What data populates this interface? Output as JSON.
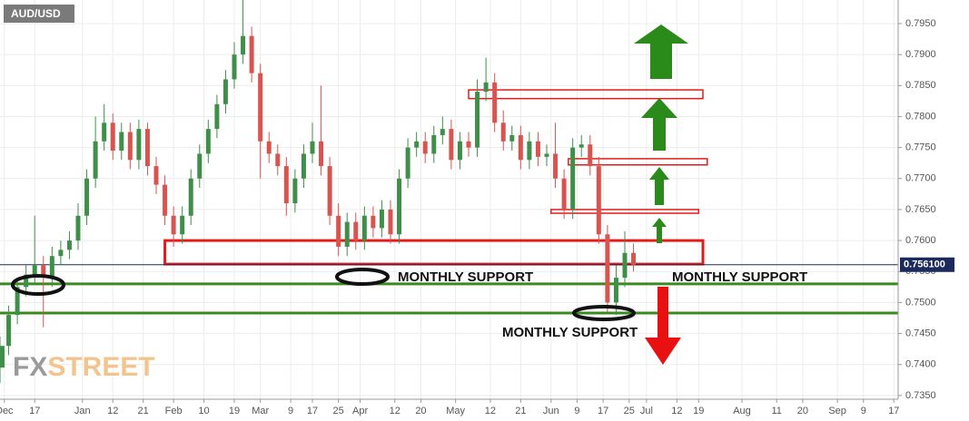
{
  "chart_data": {
    "type": "candlestick",
    "title": "AUD/USD",
    "x": [
      0,
      2,
      4,
      6,
      8,
      10,
      12,
      14,
      16,
      18,
      20,
      22,
      24,
      26,
      28,
      30,
      32,
      34,
      36,
      38,
      40,
      42,
      44,
      46,
      48,
      50,
      52,
      54,
      56,
      58,
      60,
      62,
      64,
      66,
      68,
      70,
      72,
      74,
      76,
      78,
      80,
      82,
      84,
      86,
      88,
      90,
      92,
      94,
      96,
      98,
      100,
      102,
      104,
      106,
      108,
      110,
      112,
      114,
      116,
      118,
      120,
      122,
      124,
      126,
      128,
      130,
      132,
      134,
      136,
      138,
      140,
      142,
      144,
      146
    ],
    "open": [
      0.7395,
      0.743,
      0.748,
      0.7525,
      0.7545,
      0.756,
      0.754,
      0.7575,
      0.7585,
      0.76,
      0.764,
      0.77,
      0.776,
      0.779,
      0.7745,
      0.7775,
      0.773,
      0.778,
      0.772,
      0.769,
      0.764,
      0.761,
      0.764,
      0.77,
      0.774,
      0.778,
      0.782,
      0.786,
      0.79,
      0.793,
      0.787,
      0.776,
      0.774,
      0.772,
      0.766,
      0.77,
      0.774,
      0.776,
      0.772,
      0.764,
      0.759,
      0.763,
      0.76,
      0.764,
      0.762,
      0.765,
      0.761,
      0.77,
      0.775,
      0.776,
      0.774,
      0.777,
      0.778,
      0.773,
      0.776,
      0.775,
      0.784,
      0.7855,
      0.779,
      0.776,
      0.777,
      0.773,
      0.776,
      0.7735,
      0.774,
      0.77,
      0.765,
      0.775,
      0.7755,
      0.772,
      0.761,
      0.75,
      0.754,
      0.758
    ],
    "high": [
      0.7445,
      0.7495,
      0.754,
      0.756,
      0.764,
      0.7575,
      0.759,
      0.76,
      0.7615,
      0.766,
      0.7715,
      0.78,
      0.782,
      0.7805,
      0.779,
      0.779,
      0.7795,
      0.779,
      0.7735,
      0.7705,
      0.7655,
      0.7655,
      0.7715,
      0.7755,
      0.7795,
      0.7835,
      0.7875,
      0.792,
      0.7988,
      0.7945,
      0.7885,
      0.7775,
      0.7755,
      0.7735,
      0.7715,
      0.7755,
      0.779,
      0.785,
      0.7735,
      0.766,
      0.7645,
      0.7645,
      0.7655,
      0.7655,
      0.7665,
      0.7665,
      0.7715,
      0.7765,
      0.7775,
      0.7775,
      0.7785,
      0.78,
      0.7795,
      0.7775,
      0.7775,
      0.786,
      0.7895,
      0.787,
      0.781,
      0.7785,
      0.7785,
      0.7775,
      0.7775,
      0.7755,
      0.779,
      0.7715,
      0.7765,
      0.777,
      0.777,
      0.7735,
      0.7625,
      0.756,
      0.7615,
      0.7595
    ],
    "low": [
      0.737,
      0.7415,
      0.7465,
      0.751,
      0.753,
      0.746,
      0.7525,
      0.756,
      0.757,
      0.7585,
      0.7625,
      0.7685,
      0.7745,
      0.773,
      0.773,
      0.7715,
      0.7715,
      0.7705,
      0.7675,
      0.7625,
      0.759,
      0.7595,
      0.7625,
      0.7685,
      0.7725,
      0.7765,
      0.7805,
      0.7845,
      0.7885,
      0.7855,
      0.77,
      0.7725,
      0.7705,
      0.764,
      0.7645,
      0.7685,
      0.7725,
      0.7705,
      0.7625,
      0.7575,
      0.7575,
      0.7585,
      0.7585,
      0.7605,
      0.7605,
      0.7595,
      0.7595,
      0.7685,
      0.7735,
      0.7725,
      0.7725,
      0.7755,
      0.7715,
      0.7715,
      0.7735,
      0.7735,
      0.7825,
      0.7775,
      0.7745,
      0.7745,
      0.7715,
      0.7715,
      0.772,
      0.772,
      0.7685,
      0.7635,
      0.7635,
      0.7735,
      0.7705,
      0.7595,
      0.7485,
      0.748,
      0.7525,
      0.755
    ],
    "close": [
      0.743,
      0.748,
      0.7525,
      0.7545,
      0.756,
      0.754,
      0.7575,
      0.7585,
      0.76,
      0.764,
      0.77,
      0.776,
      0.779,
      0.7745,
      0.7775,
      0.773,
      0.778,
      0.772,
      0.769,
      0.764,
      0.761,
      0.764,
      0.77,
      0.774,
      0.778,
      0.782,
      0.786,
      0.79,
      0.793,
      0.787,
      0.776,
      0.774,
      0.772,
      0.766,
      0.77,
      0.774,
      0.776,
      0.772,
      0.764,
      0.759,
      0.763,
      0.76,
      0.764,
      0.762,
      0.765,
      0.761,
      0.77,
      0.775,
      0.776,
      0.774,
      0.777,
      0.778,
      0.773,
      0.776,
      0.775,
      0.784,
      0.7855,
      0.779,
      0.776,
      0.777,
      0.773,
      0.776,
      0.7735,
      0.774,
      0.77,
      0.765,
      0.775,
      0.7755,
      0.772,
      0.761,
      0.75,
      0.754,
      0.758,
      0.7561
    ],
    "up_color": "#3f8f4a",
    "down_color": "#d9534f",
    "xlim": [
      0,
      207
    ],
    "ylim": [
      0.7344,
      0.7988
    ],
    "grid": true,
    "xticks": [
      {
        "value": 1,
        "label": "Dec"
      },
      {
        "value": 8,
        "label": "17"
      },
      {
        "value": 19,
        "label": "Jan"
      },
      {
        "value": 26,
        "label": "12"
      },
      {
        "value": 33,
        "label": "21"
      },
      {
        "value": 40,
        "label": "Feb"
      },
      {
        "value": 47,
        "label": "10"
      },
      {
        "value": 54,
        "label": "19"
      },
      {
        "value": 60,
        "label": "Mar"
      },
      {
        "value": 67,
        "label": "9"
      },
      {
        "value": 72,
        "label": "17"
      },
      {
        "value": 78,
        "label": "25"
      },
      {
        "value": 83,
        "label": "Apr"
      },
      {
        "value": 91,
        "label": "12"
      },
      {
        "value": 97,
        "label": "20"
      },
      {
        "value": 105,
        "label": "May"
      },
      {
        "value": 113,
        "label": "12"
      },
      {
        "value": 120,
        "label": "21"
      },
      {
        "value": 127,
        "label": "Jun"
      },
      {
        "value": 133,
        "label": "9"
      },
      {
        "value": 139,
        "label": "17"
      },
      {
        "value": 145,
        "label": "25"
      },
      {
        "value": 149,
        "label": "Jul"
      },
      {
        "value": 156,
        "label": "12"
      },
      {
        "value": 161,
        "label": "19"
      },
      {
        "value": 171,
        "label": "Aug"
      },
      {
        "value": 179,
        "label": "11"
      },
      {
        "value": 185,
        "label": "20"
      },
      {
        "value": 193,
        "label": "Sep"
      },
      {
        "value": 199,
        "label": "9"
      },
      {
        "value": 206,
        "label": "17"
      }
    ],
    "yticks": [
      {
        "value": 0.735,
        "label": "0.7350"
      },
      {
        "value": 0.74,
        "label": "0.7400"
      },
      {
        "value": 0.745,
        "label": "0.7450"
      },
      {
        "value": 0.75,
        "label": "0.7500"
      },
      {
        "value": 0.755,
        "label": "0.7550"
      },
      {
        "value": 0.76,
        "label": "0.7600"
      },
      {
        "value": 0.765,
        "label": "0.7650"
      },
      {
        "value": 0.77,
        "label": "0.7700"
      },
      {
        "value": 0.775,
        "label": "0.7750"
      },
      {
        "value": 0.78,
        "label": "0.7800"
      },
      {
        "value": 0.785,
        "label": "0.7850"
      },
      {
        "value": 0.79,
        "label": "0.7900"
      },
      {
        "value": 0.795,
        "label": "0.7950"
      }
    ],
    "last_price": {
      "value": 0.7561,
      "label": "0.756100"
    },
    "support_levels": [
      0.753,
      0.7483
    ],
    "support_color": "#3a8a1e",
    "zones": [
      {
        "top": 0.76,
        "bottom": 0.7562,
        "x0": 38,
        "x1": 162
      },
      {
        "top": 0.7843,
        "bottom": 0.7829,
        "x0": 108,
        "x1": 162
      },
      {
        "top": 0.7732,
        "bottom": 0.7722,
        "x0": 131,
        "x1": 163
      },
      {
        "top": 0.765,
        "bottom": 0.7644,
        "x0": 127,
        "x1": 161
      }
    ],
    "zone_color": "#e31b1b",
    "annotations": [
      "MONTHLY SUPPORT",
      "MONTHLY SUPPORT",
      "MONTHLY SUPPORT"
    ]
  },
  "logo": {
    "part1": "FX",
    "part2": "STREET"
  }
}
